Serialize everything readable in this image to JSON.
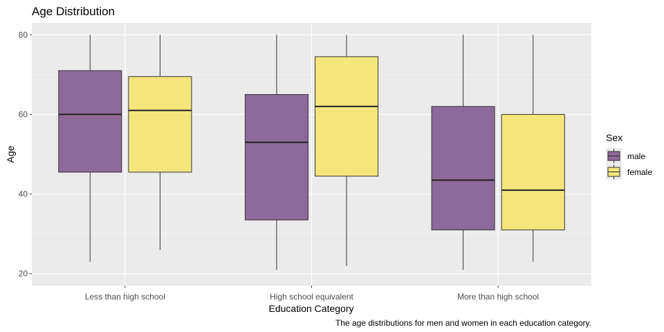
{
  "chart_data": {
    "type": "boxplot",
    "title": "Age Distribution",
    "xlabel": "Education Category",
    "ylabel": "Age",
    "caption": "The age distributions for men and women in each education category.",
    "categories": [
      "Less than high school",
      "High school equivalent",
      "More than high school"
    ],
    "ylim": [
      17,
      83
    ],
    "yticks": [
      20,
      40,
      60,
      80
    ],
    "grid": true,
    "legend": {
      "title": "Sex",
      "placement": "right"
    },
    "series": [
      {
        "name": "male",
        "color": "#8d6a99",
        "boxes": [
          {
            "min": 23,
            "q1": 45.5,
            "median": 60,
            "q3": 71,
            "max": 80
          },
          {
            "min": 21,
            "q1": 33.5,
            "median": 53,
            "q3": 65,
            "max": 80
          },
          {
            "min": 21,
            "q1": 31,
            "median": 43.5,
            "q3": 62,
            "max": 80
          }
        ]
      },
      {
        "name": "female",
        "color": "#f5e67c",
        "boxes": [
          {
            "min": 26,
            "q1": 45.5,
            "median": 61,
            "q3": 69.5,
            "max": 80
          },
          {
            "min": 22,
            "q1": 44.5,
            "median": 62,
            "q3": 74.5,
            "max": 80
          },
          {
            "min": 23,
            "q1": 31,
            "median": 41,
            "q3": 60,
            "max": 80
          }
        ]
      }
    ]
  }
}
